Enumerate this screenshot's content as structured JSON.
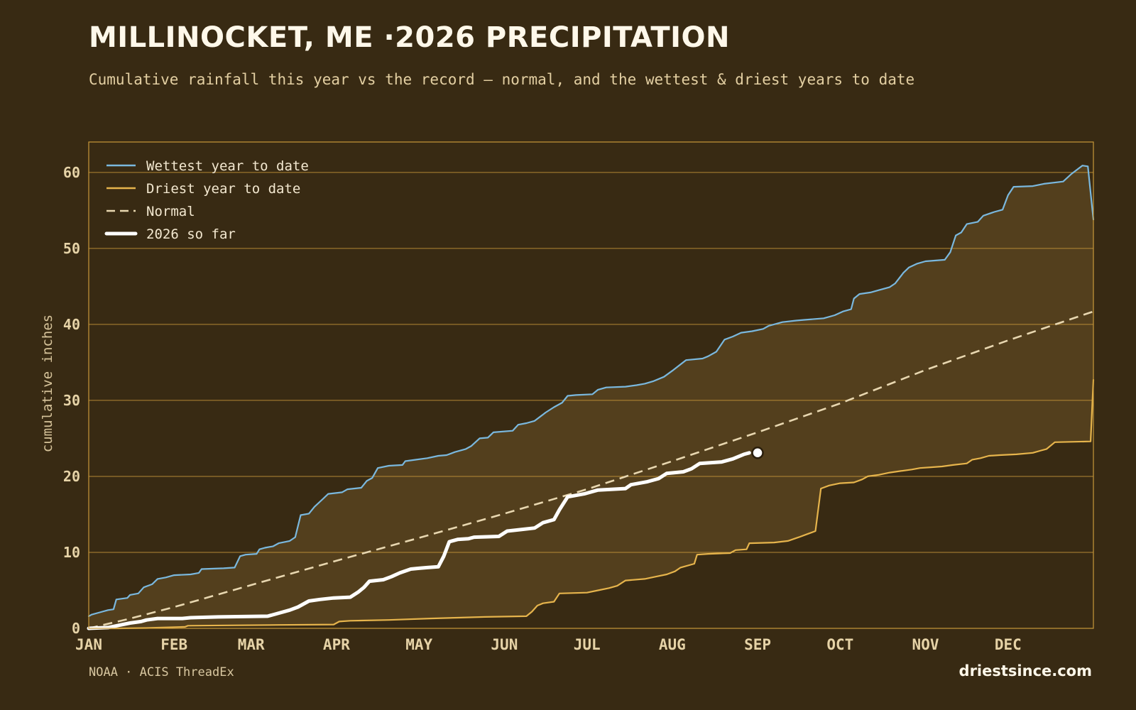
{
  "header": {
    "title": "MILLINOCKET, ME ·2026 PRECIPITATION",
    "subtitle": "Cumulative rainfall this year vs the record — normal, and the wettest & driest years to date"
  },
  "footer": {
    "source": "NOAA · ACIS ThreadEx",
    "brand": "driestsince.com"
  },
  "colors": {
    "background": "#382a13",
    "band_fill": "#533f1d",
    "grid": "#c9993a",
    "wettest": "#7ab8de",
    "driest": "#e6b44c",
    "normal": "#e8d7b0",
    "current": "#ffffff"
  },
  "chart_data": {
    "type": "line",
    "title": "MILLINOCKET, ME ·2026 PRECIPITATION",
    "ylabel": "cumulative inches",
    "xlabel": "",
    "ylim": [
      0,
      64
    ],
    "xlim_day_of_year": [
      1,
      366
    ],
    "x_unit": "day of year",
    "y_ticks": [
      0,
      10,
      20,
      30,
      40,
      50,
      60
    ],
    "month_labels": [
      "JAN",
      "FEB",
      "MAR",
      "APR",
      "MAY",
      "JUN",
      "JUL",
      "AUG",
      "SEP",
      "OCT",
      "NOV",
      "DEC"
    ],
    "month_start_days": [
      1,
      32,
      60,
      91,
      121,
      152,
      182,
      213,
      244,
      274,
      305,
      335
    ],
    "grid": true,
    "legend_position": "top-left",
    "band": {
      "upper": "Wettest year to date",
      "lower": "Driest year to date"
    },
    "series": [
      {
        "name": "Wettest year to date",
        "style": "solid",
        "color": "#7ab8de",
        "points": [
          [
            1,
            1.6
          ],
          [
            2,
            1.8
          ],
          [
            5,
            2.1
          ],
          [
            8,
            2.4
          ],
          [
            10,
            2.5
          ],
          [
            11,
            3.8
          ],
          [
            15,
            4.0
          ],
          [
            16,
            4.4
          ],
          [
            19,
            4.6
          ],
          [
            21,
            5.4
          ],
          [
            24,
            5.8
          ],
          [
            26,
            6.5
          ],
          [
            29,
            6.7
          ],
          [
            32,
            7.0
          ],
          [
            38,
            7.1
          ],
          [
            41,
            7.3
          ],
          [
            42,
            7.8
          ],
          [
            50,
            7.9
          ],
          [
            54,
            8.0
          ],
          [
            56,
            9.5
          ],
          [
            58,
            9.7
          ],
          [
            62,
            9.8
          ],
          [
            63,
            10.4
          ],
          [
            65,
            10.6
          ],
          [
            68,
            10.8
          ],
          [
            70,
            11.2
          ],
          [
            74,
            11.5
          ],
          [
            76,
            12.0
          ],
          [
            78,
            14.9
          ],
          [
            81,
            15.1
          ],
          [
            83,
            16.0
          ],
          [
            86,
            17.0
          ],
          [
            88,
            17.7
          ],
          [
            93,
            17.9
          ],
          [
            95,
            18.3
          ],
          [
            100,
            18.5
          ],
          [
            102,
            19.4
          ],
          [
            104,
            19.8
          ],
          [
            106,
            21.1
          ],
          [
            110,
            21.4
          ],
          [
            115,
            21.5
          ],
          [
            116,
            22.0
          ],
          [
            120,
            22.2
          ],
          [
            124,
            22.4
          ],
          [
            128,
            22.7
          ],
          [
            131,
            22.8
          ],
          [
            134,
            23.2
          ],
          [
            138,
            23.6
          ],
          [
            140,
            24.0
          ],
          [
            143,
            25.0
          ],
          [
            146,
            25.1
          ],
          [
            148,
            25.8
          ],
          [
            155,
            26.0
          ],
          [
            157,
            26.8
          ],
          [
            160,
            27.0
          ],
          [
            163,
            27.3
          ],
          [
            167,
            28.4
          ],
          [
            170,
            29.1
          ],
          [
            173,
            29.7
          ],
          [
            175,
            30.6
          ],
          [
            178,
            30.7
          ],
          [
            184,
            30.8
          ],
          [
            186,
            31.4
          ],
          [
            189,
            31.7
          ],
          [
            196,
            31.8
          ],
          [
            200,
            32.0
          ],
          [
            203,
            32.2
          ],
          [
            206,
            32.5
          ],
          [
            210,
            33.1
          ],
          [
            213,
            33.9
          ],
          [
            218,
            35.3
          ],
          [
            224,
            35.5
          ],
          [
            226,
            35.8
          ],
          [
            229,
            36.4
          ],
          [
            232,
            38.0
          ],
          [
            235,
            38.4
          ],
          [
            238,
            38.9
          ],
          [
            242,
            39.1
          ],
          [
            246,
            39.4
          ],
          [
            248,
            39.8
          ],
          [
            253,
            40.3
          ],
          [
            258,
            40.5
          ],
          [
            261,
            40.6
          ],
          [
            268,
            40.8
          ],
          [
            272,
            41.2
          ],
          [
            275,
            41.7
          ],
          [
            278,
            42.0
          ],
          [
            279,
            43.4
          ],
          [
            281,
            44.0
          ],
          [
            285,
            44.2
          ],
          [
            288,
            44.5
          ],
          [
            292,
            44.9
          ],
          [
            294,
            45.4
          ],
          [
            297,
            46.8
          ],
          [
            299,
            47.5
          ],
          [
            302,
            48.0
          ],
          [
            305,
            48.3
          ],
          [
            312,
            48.5
          ],
          [
            314,
            49.5
          ],
          [
            316,
            51.7
          ],
          [
            318,
            52.1
          ],
          [
            320,
            53.2
          ],
          [
            324,
            53.5
          ],
          [
            326,
            54.3
          ],
          [
            330,
            54.8
          ],
          [
            333,
            55.1
          ],
          [
            335,
            57.0
          ],
          [
            337,
            58.1
          ],
          [
            344,
            58.2
          ],
          [
            348,
            58.5
          ],
          [
            355,
            58.8
          ],
          [
            358,
            59.8
          ],
          [
            362,
            60.9
          ],
          [
            364,
            60.8
          ],
          [
            366,
            53.8
          ]
        ]
      },
      {
        "name": "Driest year to date",
        "style": "solid",
        "color": "#e6b44c",
        "points": [
          [
            1,
            0.0
          ],
          [
            12,
            0.0
          ],
          [
            22,
            0.05
          ],
          [
            36,
            0.2
          ],
          [
            37,
            0.35
          ],
          [
            55,
            0.4
          ],
          [
            70,
            0.45
          ],
          [
            90,
            0.5
          ],
          [
            92,
            0.9
          ],
          [
            96,
            1.0
          ],
          [
            110,
            1.1
          ],
          [
            125,
            1.3
          ],
          [
            135,
            1.4
          ],
          [
            145,
            1.5
          ],
          [
            160,
            1.6
          ],
          [
            162,
            2.2
          ],
          [
            164,
            3.0
          ],
          [
            166,
            3.3
          ],
          [
            170,
            3.5
          ],
          [
            172,
            4.6
          ],
          [
            182,
            4.7
          ],
          [
            186,
            5.0
          ],
          [
            190,
            5.3
          ],
          [
            193,
            5.6
          ],
          [
            196,
            6.3
          ],
          [
            203,
            6.5
          ],
          [
            207,
            6.8
          ],
          [
            211,
            7.1
          ],
          [
            214,
            7.5
          ],
          [
            216,
            8.0
          ],
          [
            221,
            8.5
          ],
          [
            222,
            9.7
          ],
          [
            226,
            9.8
          ],
          [
            234,
            9.9
          ],
          [
            236,
            10.3
          ],
          [
            240,
            10.4
          ],
          [
            241,
            11.2
          ],
          [
            250,
            11.3
          ],
          [
            255,
            11.5
          ],
          [
            259,
            12.0
          ],
          [
            262,
            12.4
          ],
          [
            265,
            12.8
          ],
          [
            267,
            18.4
          ],
          [
            270,
            18.8
          ],
          [
            274,
            19.1
          ],
          [
            279,
            19.2
          ],
          [
            282,
            19.6
          ],
          [
            284,
            20.0
          ],
          [
            288,
            20.2
          ],
          [
            292,
            20.5
          ],
          [
            296,
            20.7
          ],
          [
            300,
            20.9
          ],
          [
            303,
            21.1
          ],
          [
            307,
            21.2
          ],
          [
            311,
            21.3
          ],
          [
            315,
            21.5
          ],
          [
            320,
            21.7
          ],
          [
            322,
            22.2
          ],
          [
            325,
            22.4
          ],
          [
            328,
            22.7
          ],
          [
            332,
            22.8
          ],
          [
            338,
            22.9
          ],
          [
            344,
            23.1
          ],
          [
            347,
            23.4
          ],
          [
            349,
            23.6
          ],
          [
            352,
            24.5
          ],
          [
            365,
            24.6
          ],
          [
            366,
            32.7
          ]
        ]
      },
      {
        "name": "Normal",
        "style": "dashed",
        "color": "#e8d7b0",
        "points": [
          [
            1,
            0.0
          ],
          [
            15,
            1.2
          ],
          [
            32,
            2.8
          ],
          [
            60,
            5.7
          ],
          [
            91,
            8.9
          ],
          [
            121,
            11.9
          ],
          [
            152,
            15.1
          ],
          [
            182,
            18.3
          ],
          [
            213,
            22.0
          ],
          [
            244,
            25.8
          ],
          [
            274,
            29.6
          ],
          [
            305,
            34.0
          ],
          [
            335,
            37.9
          ],
          [
            366,
            41.7
          ]
        ]
      },
      {
        "name": "2026 so far",
        "style": "thick",
        "color": "#ffffff",
        "points": [
          [
            1,
            0.0
          ],
          [
            8,
            0.1
          ],
          [
            12,
            0.4
          ],
          [
            16,
            0.7
          ],
          [
            20,
            0.9
          ],
          [
            22,
            1.1
          ],
          [
            26,
            1.3
          ],
          [
            35,
            1.3
          ],
          [
            38,
            1.4
          ],
          [
            48,
            1.5
          ],
          [
            66,
            1.6
          ],
          [
            70,
            2.0
          ],
          [
            74,
            2.4
          ],
          [
            77,
            2.8
          ],
          [
            81,
            3.6
          ],
          [
            85,
            3.8
          ],
          [
            90,
            4.0
          ],
          [
            96,
            4.1
          ],
          [
            99,
            4.8
          ],
          [
            101,
            5.4
          ],
          [
            103,
            6.2
          ],
          [
            108,
            6.4
          ],
          [
            111,
            6.8
          ],
          [
            114,
            7.3
          ],
          [
            118,
            7.8
          ],
          [
            121,
            7.9
          ],
          [
            124,
            8.0
          ],
          [
            128,
            8.1
          ],
          [
            130,
            9.5
          ],
          [
            132,
            11.4
          ],
          [
            135,
            11.7
          ],
          [
            139,
            11.8
          ],
          [
            141,
            12.0
          ],
          [
            150,
            12.1
          ],
          [
            153,
            12.8
          ],
          [
            158,
            13.0
          ],
          [
            163,
            13.2
          ],
          [
            166,
            13.9
          ],
          [
            170,
            14.3
          ],
          [
            172,
            15.6
          ],
          [
            175,
            17.3
          ],
          [
            181,
            17.7
          ],
          [
            186,
            18.2
          ],
          [
            196,
            18.4
          ],
          [
            198,
            18.9
          ],
          [
            204,
            19.3
          ],
          [
            208,
            19.7
          ],
          [
            211,
            20.4
          ],
          [
            217,
            20.6
          ],
          [
            220,
            21.0
          ],
          [
            223,
            21.7
          ],
          [
            231,
            21.9
          ],
          [
            235,
            22.3
          ],
          [
            239,
            22.9
          ],
          [
            241,
            23.1
          ]
        ],
        "latest": {
          "day": 244,
          "value": 23.1
        }
      }
    ]
  }
}
